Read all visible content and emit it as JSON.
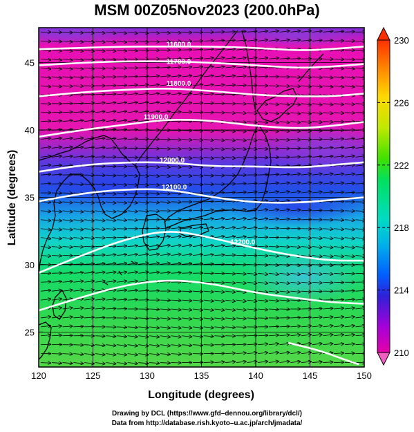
{
  "title": "MSM 00Z05Nov2023 (200.0hPa)",
  "credits": {
    "line1": "Drawing by DCL (https://www.gfd–dennou.org/library/dcl/)",
    "line2": "Data from http://database.rish.kyoto–u.ac.jp/arch/jmadata/"
  },
  "chart_data": {
    "type": "map",
    "xlabel": "Longitude (degrees)",
    "ylabel": "Latitude  (degrees)",
    "xlim": [
      120,
      150
    ],
    "ylim": [
      22.4,
      47.6
    ],
    "xticks": [
      120,
      125,
      130,
      135,
      140,
      145,
      150
    ],
    "yticks": [
      25,
      30,
      35,
      40,
      45
    ],
    "contours": [
      {
        "label": "11600.0",
        "label_lon": 132.9,
        "label_lat": 46.2,
        "path": [
          [
            120,
            46.0
          ],
          [
            124,
            46.1
          ],
          [
            128,
            46.2
          ],
          [
            132,
            46.2
          ],
          [
            136,
            46.2
          ],
          [
            140,
            46.1
          ],
          [
            144,
            45.9
          ],
          [
            147,
            46.0
          ],
          [
            150,
            46.2
          ]
        ]
      },
      {
        "label": "11700.0",
        "label_lon": 132.9,
        "label_lat": 44.9,
        "path": [
          [
            120,
            44.8
          ],
          [
            124,
            45.0
          ],
          [
            128,
            45.1
          ],
          [
            132,
            45.1
          ],
          [
            136,
            45.0
          ],
          [
            140,
            44.8
          ],
          [
            144,
            44.6
          ],
          [
            147,
            44.7
          ],
          [
            150,
            44.9
          ]
        ]
      },
      {
        "label": "11800.0",
        "label_lon": 132.9,
        "label_lat": 43.3,
        "path": [
          [
            120,
            42.5
          ],
          [
            124,
            42.8
          ],
          [
            128,
            43.0
          ],
          [
            132,
            43.1
          ],
          [
            136,
            42.9
          ],
          [
            140,
            42.6
          ],
          [
            144,
            42.5
          ],
          [
            147,
            42.5
          ],
          [
            150,
            42.7
          ]
        ]
      },
      {
        "label": "11900.0",
        "label_lon": 130.8,
        "label_lat": 40.8,
        "path": [
          [
            120,
            39.5
          ],
          [
            124,
            40.0
          ],
          [
            128,
            40.4
          ],
          [
            132,
            40.8
          ],
          [
            136,
            40.7
          ],
          [
            140,
            40.3
          ],
          [
            144,
            40.1
          ],
          [
            147,
            40.3
          ],
          [
            150,
            40.6
          ]
        ]
      },
      {
        "label": "12000.0",
        "label_lon": 132.3,
        "label_lat": 37.6,
        "path": [
          [
            120,
            36.9
          ],
          [
            124,
            37.4
          ],
          [
            128,
            37.6
          ],
          [
            132,
            37.6
          ],
          [
            136,
            37.3
          ],
          [
            140,
            37.3
          ],
          [
            144,
            37.2
          ],
          [
            147,
            37.4
          ],
          [
            150,
            37.6
          ]
        ]
      },
      {
        "label": "12100.0",
        "label_lon": 132.5,
        "label_lat": 35.6,
        "path": [
          [
            120,
            34.7
          ],
          [
            124,
            35.3
          ],
          [
            128,
            35.6
          ],
          [
            132,
            35.6
          ],
          [
            136,
            35.0
          ],
          [
            140,
            34.6
          ],
          [
            144,
            34.6
          ],
          [
            147,
            34.8
          ],
          [
            150,
            35.0
          ]
        ]
      },
      {
        "label": "12200.0",
        "label_lon": 138.8,
        "label_lat": 31.5,
        "path": [
          [
            120,
            29.4
          ],
          [
            124,
            30.7
          ],
          [
            128,
            31.9
          ],
          [
            132,
            32.6
          ],
          [
            136,
            32.0
          ],
          [
            140,
            31.2
          ],
          [
            144,
            30.6
          ],
          [
            147,
            30.3
          ],
          [
            150,
            30.3
          ]
        ]
      },
      {
        "label": "",
        "label_lon": 0,
        "label_lat": 0,
        "path": [
          [
            120,
            26.6
          ],
          [
            124,
            27.6
          ],
          [
            128,
            28.5
          ],
          [
            132,
            28.9
          ],
          [
            136,
            28.6
          ],
          [
            140,
            27.9
          ],
          [
            144,
            27.5
          ],
          [
            147,
            27.2
          ],
          [
            150,
            27.1
          ]
        ]
      },
      {
        "label": "",
        "label_lon": 0,
        "label_lat": 0,
        "path": [
          [
            143,
            24.2
          ],
          [
            146,
            23.6
          ],
          [
            148,
            23.0
          ],
          [
            149.5,
            22.6
          ]
        ]
      }
    ],
    "shading": {
      "variable": "temperature",
      "colorbar_ticks": [
        210,
        214,
        218,
        222,
        226,
        230
      ],
      "colorbar_min": 210,
      "colorbar_max": 230,
      "colormap": [
        "#e400a8",
        "#a800d8",
        "#3020d8",
        "#0060ff",
        "#00b4e8",
        "#00dcc0",
        "#00e060",
        "#40e000",
        "#c0e800",
        "#ffd800",
        "#ff9000",
        "#ff3000"
      ]
    },
    "wind_vectors": {
      "direction": "westerly",
      "rows": 38,
      "cols": 30
    }
  }
}
